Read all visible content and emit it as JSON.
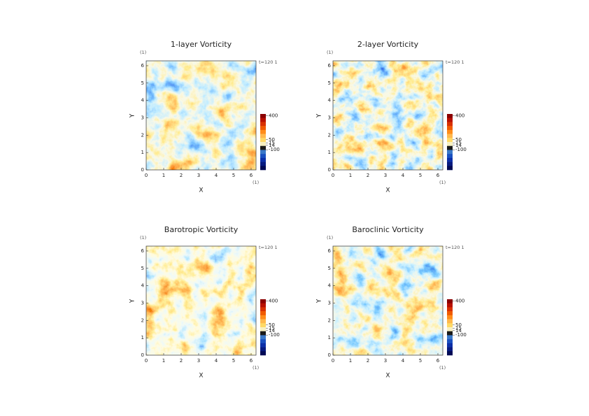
{
  "chart_data": [
    {
      "type": "heatmap",
      "title": "1-layer Vorticity",
      "xlabel": "X",
      "ylabel": "Y",
      "x_unit": "(1)",
      "y_unit": "(1)",
      "time_label": "t=120 1",
      "xlim": [
        0,
        6.28
      ],
      "ylim": [
        0,
        6.28
      ],
      "xticks": [
        0,
        1,
        2,
        3,
        4,
        5,
        6
      ],
      "yticks": [
        0,
        1,
        2,
        3,
        4,
        5,
        6
      ],
      "colorbar_ticks": [
        400,
        50,
        15,
        14,
        -100
      ]
    },
    {
      "type": "heatmap",
      "title": "2-layer Vorticity",
      "xlabel": "X",
      "ylabel": "Y",
      "x_unit": "(1)",
      "y_unit": "(1)",
      "time_label": "t=120 1",
      "xlim": [
        0,
        6.28
      ],
      "ylim": [
        0,
        6.28
      ],
      "xticks": [
        0,
        1,
        2,
        3,
        4,
        5,
        6
      ],
      "yticks": [
        0,
        1,
        2,
        3,
        4,
        5,
        6
      ],
      "colorbar_ticks": [
        400,
        50,
        15,
        14,
        -100
      ]
    },
    {
      "type": "heatmap",
      "title": "Barotropic Vorticity",
      "xlabel": "X",
      "ylabel": "Y",
      "x_unit": "(1)",
      "y_unit": "(1)",
      "time_label": "t=120 1",
      "xlim": [
        0,
        6.28
      ],
      "ylim": [
        0,
        6.28
      ],
      "xticks": [
        0,
        1,
        2,
        3,
        4,
        5,
        6
      ],
      "yticks": [
        0,
        1,
        2,
        3,
        4,
        5,
        6
      ],
      "colorbar_ticks": [
        400,
        50,
        15,
        14,
        -100
      ]
    },
    {
      "type": "heatmap",
      "title": "Baroclinic Vorticity",
      "xlabel": "X",
      "ylabel": "Y",
      "x_unit": "(1)",
      "y_unit": "(1)",
      "time_label": "t=120 1",
      "xlim": [
        0,
        6.28
      ],
      "ylim": [
        0,
        6.28
      ],
      "xticks": [
        0,
        1,
        2,
        3,
        4,
        5,
        6
      ],
      "yticks": [
        0,
        1,
        2,
        3,
        4,
        5,
        6
      ],
      "colorbar_ticks": [
        400,
        50,
        15,
        14,
        -100
      ]
    }
  ]
}
